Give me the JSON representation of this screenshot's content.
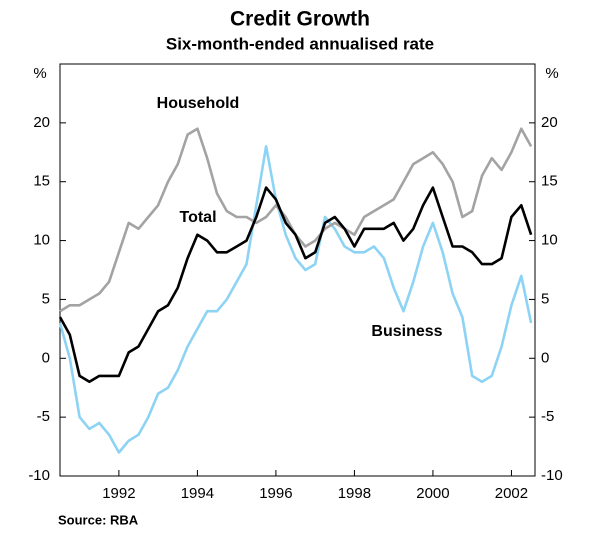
{
  "chart_data": {
    "type": "line",
    "title": "Credit Growth",
    "subtitle": "Six-month-ended annualised rate",
    "y_unit": "%",
    "source": "Source: RBA",
    "x": [
      1990.5,
      1990.75,
      1991,
      1991.25,
      1991.5,
      1991.75,
      1992,
      1992.25,
      1992.5,
      1992.75,
      1993,
      1993.25,
      1993.5,
      1993.75,
      1994,
      1994.25,
      1994.5,
      1994.75,
      1995,
      1995.25,
      1995.5,
      1995.75,
      1996,
      1996.25,
      1996.5,
      1996.75,
      1997,
      1997.25,
      1997.5,
      1997.75,
      1998,
      1998.25,
      1998.5,
      1998.75,
      1999,
      1999.25,
      1999.5,
      1999.75,
      2000,
      2000.25,
      2000.5,
      2000.75,
      2001,
      2001.25,
      2001.5,
      2001.75,
      2002,
      2002.25,
      2002.5
    ],
    "series": [
      {
        "name": "Household",
        "color": "#a3a3a3",
        "values": [
          4,
          4.5,
          4.5,
          5,
          5.5,
          6.5,
          9,
          11.5,
          11,
          12,
          13,
          15,
          16.5,
          19,
          19.5,
          17,
          14,
          12.5,
          12,
          12,
          11.5,
          12,
          13,
          12,
          10.5,
          9.5,
          10,
          11,
          11.5,
          11,
          10.5,
          12,
          12.5,
          13,
          13.5,
          15,
          16.5,
          17,
          17.5,
          16.5,
          15,
          12,
          12.5,
          15.5,
          17,
          16,
          17.5,
          19.5,
          18
        ]
      },
      {
        "name": "Total",
        "color": "#000000",
        "values": [
          3.5,
          2,
          -1.5,
          -2,
          -1.5,
          -1.5,
          -1.5,
          0.5,
          1,
          2.5,
          4,
          4.5,
          6,
          8.5,
          10.5,
          10,
          9,
          9,
          9.5,
          10,
          12,
          14.5,
          13.5,
          11.5,
          10.5,
          8.5,
          9,
          11.5,
          12,
          11,
          9.5,
          11,
          11,
          11,
          11.5,
          10,
          11,
          13,
          14.5,
          12,
          9.5,
          9.5,
          9,
          8,
          8,
          8.5,
          12,
          13,
          10.5
        ]
      },
      {
        "name": "Business",
        "color": "#8dd3f4",
        "values": [
          3,
          0,
          -5,
          -6,
          -5.5,
          -6.5,
          -8,
          -7,
          -6.5,
          -5,
          -3,
          -2.5,
          -1,
          1,
          2.5,
          4,
          4,
          5,
          6.5,
          8,
          13,
          18,
          13.5,
          10.5,
          8.5,
          7.5,
          8,
          12,
          11,
          9.5,
          9,
          9,
          9.5,
          8.5,
          6,
          4,
          6.5,
          9.5,
          11.5,
          9,
          5.5,
          3.5,
          -1.5,
          -2,
          -1.5,
          1,
          4.5,
          7,
          3
        ]
      }
    ],
    "xlim": [
      1990.5,
      2002.6
    ],
    "xticks": [
      1992,
      1994,
      1996,
      1998,
      2000,
      2002
    ],
    "ylim": [
      -10,
      25
    ],
    "yticks": [
      -10,
      -5,
      0,
      5,
      10,
      15,
      20
    ]
  }
}
